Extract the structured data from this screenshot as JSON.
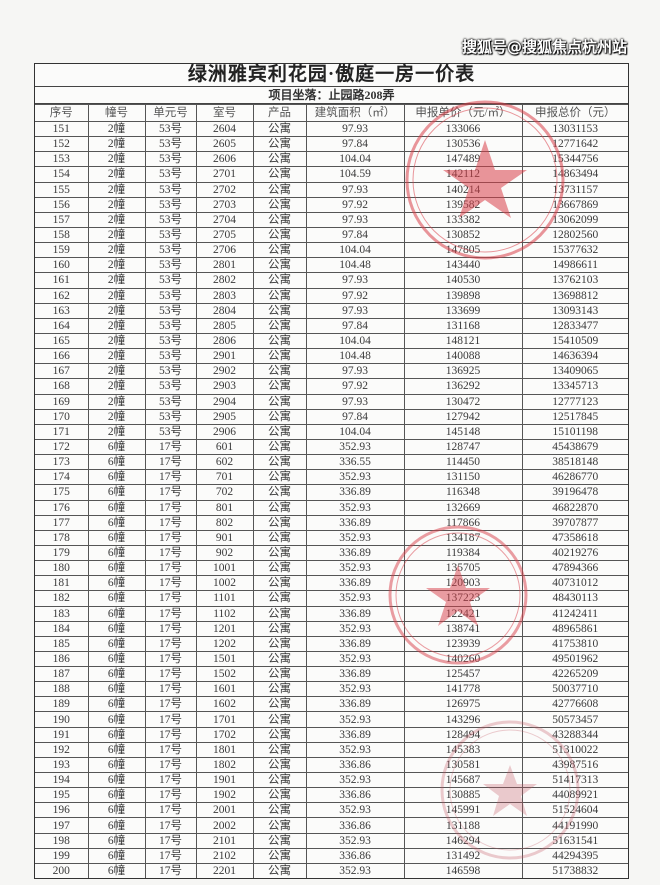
{
  "document": {
    "title": "绿洲雅宾利花园·傲庭一房一价表",
    "subtitle": "项目坐落：止园路208弄",
    "stamp_color": "#d9404a",
    "watermark": "搜狐号@搜狐焦点杭州站"
  },
  "table": {
    "headers": [
      "序号",
      "幢号",
      "单元号",
      "室号",
      "产品",
      "建筑面积（㎡）",
      "申报单价（元/㎡）",
      "申报总价（元）"
    ],
    "rows": [
      [
        "151",
        "2幢",
        "53号",
        "2604",
        "公寓",
        "97.93",
        "133066",
        "13031153"
      ],
      [
        "152",
        "2幢",
        "53号",
        "2605",
        "公寓",
        "97.84",
        "130536",
        "12771642"
      ],
      [
        "153",
        "2幢",
        "53号",
        "2606",
        "公寓",
        "104.04",
        "147489",
        "15344756"
      ],
      [
        "154",
        "2幢",
        "53号",
        "2701",
        "公寓",
        "104.59",
        "142112",
        "14863494"
      ],
      [
        "155",
        "2幢",
        "53号",
        "2702",
        "公寓",
        "97.93",
        "140214",
        "13731157"
      ],
      [
        "156",
        "2幢",
        "53号",
        "2703",
        "公寓",
        "97.92",
        "139582",
        "13667869"
      ],
      [
        "157",
        "2幢",
        "53号",
        "2704",
        "公寓",
        "97.93",
        "133382",
        "13062099"
      ],
      [
        "158",
        "2幢",
        "53号",
        "2705",
        "公寓",
        "97.84",
        "130852",
        "12802560"
      ],
      [
        "159",
        "2幢",
        "53号",
        "2706",
        "公寓",
        "104.04",
        "147805",
        "15377632"
      ],
      [
        "160",
        "2幢",
        "53号",
        "2801",
        "公寓",
        "104.48",
        "143440",
        "14986611"
      ],
      [
        "161",
        "2幢",
        "53号",
        "2802",
        "公寓",
        "97.93",
        "140530",
        "13762103"
      ],
      [
        "162",
        "2幢",
        "53号",
        "2803",
        "公寓",
        "97.92",
        "139898",
        "13698812"
      ],
      [
        "163",
        "2幢",
        "53号",
        "2804",
        "公寓",
        "97.93",
        "133699",
        "13093143"
      ],
      [
        "164",
        "2幢",
        "53号",
        "2805",
        "公寓",
        "97.84",
        "131168",
        "12833477"
      ],
      [
        "165",
        "2幢",
        "53号",
        "2806",
        "公寓",
        "104.04",
        "148121",
        "15410509"
      ],
      [
        "166",
        "2幢",
        "53号",
        "2901",
        "公寓",
        "104.48",
        "140088",
        "14636394"
      ],
      [
        "167",
        "2幢",
        "53号",
        "2902",
        "公寓",
        "97.93",
        "136925",
        "13409065"
      ],
      [
        "168",
        "2幢",
        "53号",
        "2903",
        "公寓",
        "97.92",
        "136292",
        "13345713"
      ],
      [
        "169",
        "2幢",
        "53号",
        "2904",
        "公寓",
        "97.93",
        "130472",
        "12777123"
      ],
      [
        "170",
        "2幢",
        "53号",
        "2905",
        "公寓",
        "97.84",
        "127942",
        "12517845"
      ],
      [
        "171",
        "2幢",
        "53号",
        "2906",
        "公寓",
        "104.04",
        "145148",
        "15101198"
      ],
      [
        "172",
        "6幢",
        "17号",
        "601",
        "公寓",
        "352.93",
        "128747",
        "45438679"
      ],
      [
        "173",
        "6幢",
        "17号",
        "602",
        "公寓",
        "336.55",
        "114450",
        "38518148"
      ],
      [
        "174",
        "6幢",
        "17号",
        "701",
        "公寓",
        "352.93",
        "131150",
        "46286770"
      ],
      [
        "175",
        "6幢",
        "17号",
        "702",
        "公寓",
        "336.89",
        "116348",
        "39196478"
      ],
      [
        "176",
        "6幢",
        "17号",
        "801",
        "公寓",
        "352.93",
        "132669",
        "46822870"
      ],
      [
        "177",
        "6幢",
        "17号",
        "802",
        "公寓",
        "336.89",
        "117866",
        "39707877"
      ],
      [
        "178",
        "6幢",
        "17号",
        "901",
        "公寓",
        "352.93",
        "134187",
        "47358618"
      ],
      [
        "179",
        "6幢",
        "17号",
        "902",
        "公寓",
        "336.89",
        "119384",
        "40219276"
      ],
      [
        "180",
        "6幢",
        "17号",
        "1001",
        "公寓",
        "352.93",
        "135705",
        "47894366"
      ],
      [
        "181",
        "6幢",
        "17号",
        "1002",
        "公寓",
        "336.89",
        "120903",
        "40731012"
      ],
      [
        "182",
        "6幢",
        "17号",
        "1101",
        "公寓",
        "352.93",
        "137223",
        "48430113"
      ],
      [
        "183",
        "6幢",
        "17号",
        "1102",
        "公寓",
        "336.89",
        "122421",
        "41242411"
      ],
      [
        "184",
        "6幢",
        "17号",
        "1201",
        "公寓",
        "352.93",
        "138741",
        "48965861"
      ],
      [
        "185",
        "6幢",
        "17号",
        "1202",
        "公寓",
        "336.89",
        "123939",
        "41753810"
      ],
      [
        "186",
        "6幢",
        "17号",
        "1501",
        "公寓",
        "352.93",
        "140260",
        "49501962"
      ],
      [
        "187",
        "6幢",
        "17号",
        "1502",
        "公寓",
        "336.89",
        "125457",
        "42265209"
      ],
      [
        "188",
        "6幢",
        "17号",
        "1601",
        "公寓",
        "352.93",
        "141778",
        "50037710"
      ],
      [
        "189",
        "6幢",
        "17号",
        "1602",
        "公寓",
        "336.89",
        "126975",
        "42776608"
      ],
      [
        "190",
        "6幢",
        "17号",
        "1701",
        "公寓",
        "352.93",
        "143296",
        "50573457"
      ],
      [
        "191",
        "6幢",
        "17号",
        "1702",
        "公寓",
        "336.89",
        "128494",
        "43288344"
      ],
      [
        "192",
        "6幢",
        "17号",
        "1801",
        "公寓",
        "352.93",
        "145383",
        "51310022"
      ],
      [
        "193",
        "6幢",
        "17号",
        "1802",
        "公寓",
        "336.86",
        "130581",
        "43987516"
      ],
      [
        "194",
        "6幢",
        "17号",
        "1901",
        "公寓",
        "352.93",
        "145687",
        "51417313"
      ],
      [
        "195",
        "6幢",
        "17号",
        "1902",
        "公寓",
        "336.86",
        "130885",
        "44089921"
      ],
      [
        "196",
        "6幢",
        "17号",
        "2001",
        "公寓",
        "352.93",
        "145991",
        "51524604"
      ],
      [
        "197",
        "6幢",
        "17号",
        "2002",
        "公寓",
        "336.86",
        "131188",
        "44191990"
      ],
      [
        "198",
        "6幢",
        "17号",
        "2101",
        "公寓",
        "352.93",
        "146294",
        "51631541"
      ],
      [
        "199",
        "6幢",
        "17号",
        "2102",
        "公寓",
        "336.86",
        "131492",
        "44294395"
      ],
      [
        "200",
        "6幢",
        "17号",
        "2201",
        "公寓",
        "352.93",
        "146598",
        "51738832"
      ]
    ]
  }
}
